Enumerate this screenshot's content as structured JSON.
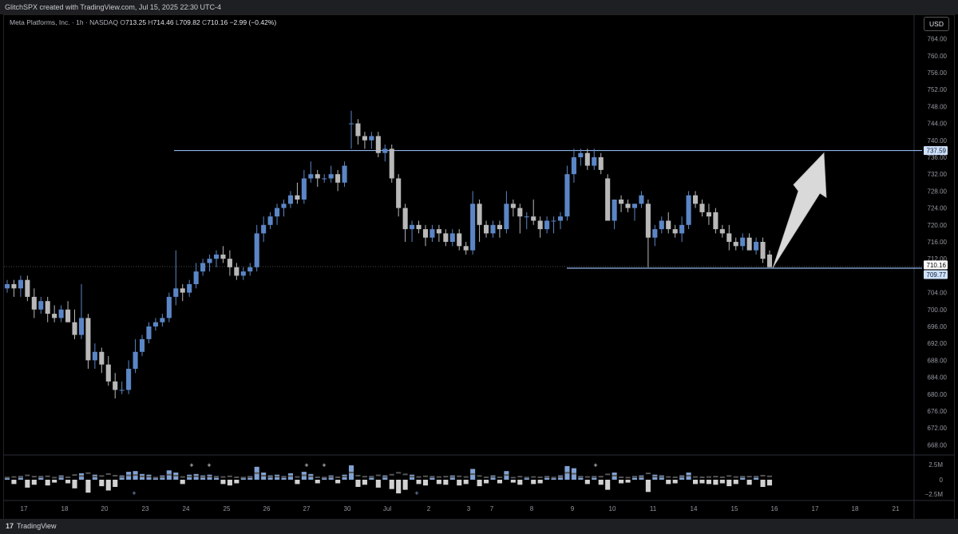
{
  "header": {
    "credit": "GlitchSPX created with TradingView.com, Jul 15, 2025 22:30 UTC-4"
  },
  "legend": {
    "symbol": "Meta Platforms, Inc. · 1h · NASDAQ",
    "o_label": "O",
    "o": "713.25",
    "h_label": "H",
    "h": "714.46",
    "l_label": "L",
    "l": "709.82",
    "c_label": "C",
    "c": "710.16",
    "change": "−2.99 (−0.42%)"
  },
  "currency_button": "USD",
  "footer": {
    "brand": "TradingView",
    "brand_mark": "17"
  },
  "colors": {
    "up": "#5b86c6",
    "down": "#b8b8b8",
    "level_line": "#8fb4ea",
    "arrow": "#d9d9d9"
  },
  "chart_data": {
    "type": "candlestick",
    "timeframe": "1h",
    "y_axis": {
      "ticks": [
        668,
        672,
        676,
        680,
        684,
        688,
        692,
        696,
        700,
        704,
        708,
        712,
        716,
        720,
        724,
        728,
        732,
        736,
        740,
        744,
        748,
        752,
        756,
        760,
        764
      ],
      "range": [
        666,
        766
      ]
    },
    "x_axis": {
      "labels": [
        "17",
        "18",
        "20",
        "23",
        "24",
        "25",
        "26",
        "27",
        "30",
        "Jul",
        "2",
        "3",
        "7",
        "8",
        "9",
        "10",
        "11",
        "14",
        "15",
        "16",
        "17",
        "18",
        "21"
      ]
    },
    "levels": [
      {
        "name": "resistance",
        "price": 737.59
      },
      {
        "name": "support",
        "price": 709.77
      }
    ],
    "price_labels": [
      "737.59",
      "710.16",
      "709.77"
    ],
    "last_price": 710.16,
    "annotation": "upward arrow",
    "volume_axis": {
      "ticks": [
        "2.5M",
        "0",
        "−2.5M"
      ]
    },
    "candles": [
      [
        705,
        707,
        704,
        706
      ],
      [
        706,
        707,
        703,
        705
      ],
      [
        705,
        708,
        703,
        707
      ],
      [
        707,
        708,
        702,
        703
      ],
      [
        703,
        705,
        698,
        700
      ],
      [
        700,
        703,
        699,
        702
      ],
      [
        702,
        703,
        697,
        699
      ],
      [
        699,
        701,
        697,
        698
      ],
      [
        698,
        701,
        697,
        700
      ],
      [
        700,
        702,
        697,
        697
      ],
      [
        697,
        700,
        693,
        694
      ],
      [
        694,
        706,
        693,
        698
      ],
      [
        698,
        699,
        686,
        688
      ],
      [
        688,
        692,
        686,
        690
      ],
      [
        690,
        691,
        685,
        687
      ],
      [
        687,
        689,
        682,
        683
      ],
      [
        683,
        685,
        679,
        681
      ],
      [
        681,
        683,
        680,
        681
      ],
      [
        681,
        688,
        680,
        686
      ],
      [
        686,
        693,
        685,
        690
      ],
      [
        690,
        694,
        689,
        693
      ],
      [
        693,
        697,
        692,
        696
      ],
      [
        696,
        698,
        695,
        697
      ],
      [
        697,
        699,
        696,
        698
      ],
      [
        698,
        704,
        697,
        703
      ],
      [
        703,
        714,
        701,
        705
      ],
      [
        705,
        706,
        702,
        704
      ],
      [
        704,
        707,
        703,
        706
      ],
      [
        706,
        711,
        705,
        709
      ],
      [
        709,
        712,
        708,
        711
      ],
      [
        711,
        713,
        709,
        712
      ],
      [
        712,
        714,
        710,
        713
      ],
      [
        713,
        715,
        711,
        712
      ],
      [
        712,
        714,
        708,
        710
      ],
      [
        710,
        711,
        707,
        708
      ],
      [
        708,
        710,
        707,
        709
      ],
      [
        709,
        711,
        708,
        710
      ],
      [
        710,
        720,
        709,
        718
      ],
      [
        718,
        722,
        716,
        720
      ],
      [
        720,
        723,
        719,
        722
      ],
      [
        722,
        725,
        720,
        724
      ],
      [
        724,
        726,
        722,
        725
      ],
      [
        725,
        728,
        724,
        727
      ],
      [
        727,
        730,
        725,
        726
      ],
      [
        726,
        733,
        725,
        731
      ],
      [
        731,
        735,
        730,
        732
      ],
      [
        732,
        733,
        729,
        731
      ],
      [
        731,
        732,
        730,
        731
      ],
      [
        731,
        734,
        730,
        732
      ],
      [
        732,
        733,
        728,
        730
      ],
      [
        730,
        735,
        729,
        734
      ],
      [
        744,
        747,
        738,
        744
      ],
      [
        744,
        745,
        739,
        741
      ],
      [
        741,
        742,
        738,
        740
      ],
      [
        740,
        742,
        738,
        741
      ],
      [
        741,
        742,
        736,
        737
      ],
      [
        737,
        739,
        735,
        738
      ],
      [
        738,
        739,
        730,
        731
      ],
      [
        731,
        732,
        722,
        724
      ],
      [
        724,
        725,
        716,
        719
      ],
      [
        719,
        721,
        716,
        720
      ],
      [
        720,
        721,
        718,
        719
      ],
      [
        719,
        720,
        715,
        717
      ],
      [
        717,
        720,
        716,
        719
      ],
      [
        719,
        720,
        716,
        718
      ],
      [
        718,
        719,
        715,
        716
      ],
      [
        716,
        719,
        715,
        718
      ],
      [
        718,
        719,
        714,
        715
      ],
      [
        715,
        716,
        713,
        714
      ],
      [
        714,
        728,
        713,
        725
      ],
      [
        725,
        726,
        716,
        720
      ],
      [
        720,
        721,
        717,
        718
      ],
      [
        718,
        721,
        717,
        720
      ],
      [
        720,
        721,
        717,
        719
      ],
      [
        719,
        728,
        718,
        725
      ],
      [
        725,
        726,
        722,
        724
      ],
      [
        724,
        725,
        718,
        722
      ],
      [
        722,
        723,
        719,
        722
      ],
      [
        722,
        726,
        720,
        721
      ],
      [
        721,
        722,
        717,
        719
      ],
      [
        719,
        722,
        718,
        721
      ],
      [
        721,
        722,
        718,
        721
      ],
      [
        721,
        723,
        719,
        722
      ],
      [
        722,
        734,
        721,
        732
      ],
      [
        732,
        738,
        730,
        736
      ],
      [
        736,
        738,
        734,
        737
      ],
      [
        737,
        738,
        733,
        734
      ],
      [
        734,
        738,
        733,
        736
      ],
      [
        736,
        737,
        732,
        733
      ],
      [
        731,
        732,
        721,
        721
      ],
      [
        721,
        725,
        719,
        726
      ],
      [
        726,
        727,
        723,
        725
      ],
      [
        725,
        726,
        723,
        724
      ],
      [
        724,
        725,
        721,
        725
      ],
      [
        725,
        728,
        724,
        727
      ],
      [
        725,
        726,
        710,
        717
      ],
      [
        717,
        720,
        715,
        719
      ],
      [
        719,
        722,
        718,
        721
      ],
      [
        721,
        723,
        718,
        719
      ],
      [
        719,
        720,
        717,
        718
      ],
      [
        718,
        722,
        716,
        720
      ],
      [
        720,
        728,
        719,
        727
      ],
      [
        727,
        728,
        724,
        725
      ],
      [
        725,
        726,
        722,
        723
      ],
      [
        723,
        725,
        720,
        722
      ],
      [
        723,
        724,
        718,
        719
      ],
      [
        719,
        720,
        717,
        718
      ],
      [
        718,
        720,
        714,
        716
      ],
      [
        716,
        717,
        714,
        715
      ],
      [
        715,
        718,
        714,
        717
      ],
      [
        717,
        718,
        714,
        714
      ],
      [
        714,
        717,
        713,
        716
      ],
      [
        716,
        717,
        711,
        712
      ],
      [
        713,
        714,
        710,
        710
      ]
    ],
    "volumes": [
      0.4,
      -0.6,
      0.5,
      -1.1,
      -0.7,
      0.5,
      -0.8,
      -0.4,
      0.6,
      -0.5,
      -1.2,
      0.9,
      -1.8,
      0.7,
      -0.9,
      -1.5,
      -1.0,
      0.6,
      1.1,
      1.2,
      0.8,
      0.7,
      0.4,
      0.6,
      1.3,
      1.0,
      -0.6,
      0.7,
      0.8,
      0.6,
      0.7,
      0.5,
      -0.6,
      -0.8,
      -0.5,
      0.4,
      0.5,
      1.8,
      1.0,
      0.6,
      0.7,
      0.5,
      0.9,
      -0.6,
      1.1,
      0.8,
      -0.5,
      0.4,
      0.6,
      -0.5,
      0.7,
      2.0,
      -1.0,
      -0.7,
      0.5,
      -1.1,
      0.6,
      -1.3,
      -1.9,
      -1.4,
      0.7,
      -0.6,
      -0.8,
      0.5,
      -0.6,
      -0.7,
      0.6,
      -0.8,
      -0.6,
      1.5,
      -0.9,
      -0.5,
      0.6,
      -0.5,
      1.2,
      -0.4,
      -0.7,
      0.4,
      -0.6,
      -0.5,
      0.5,
      0.4,
      0.6,
      1.9,
      1.6,
      0.5,
      -0.6,
      0.5,
      -0.7,
      -1.4,
      1.0,
      -0.5,
      -0.4,
      0.5,
      0.6,
      -1.7,
      0.7,
      0.6,
      -0.6,
      -0.5,
      0.6,
      1.0,
      -0.6,
      -0.5,
      -0.6,
      -0.7,
      -0.5,
      -0.9,
      -0.6,
      0.5,
      -0.7,
      0.5,
      -1.0,
      -0.8
    ]
  }
}
